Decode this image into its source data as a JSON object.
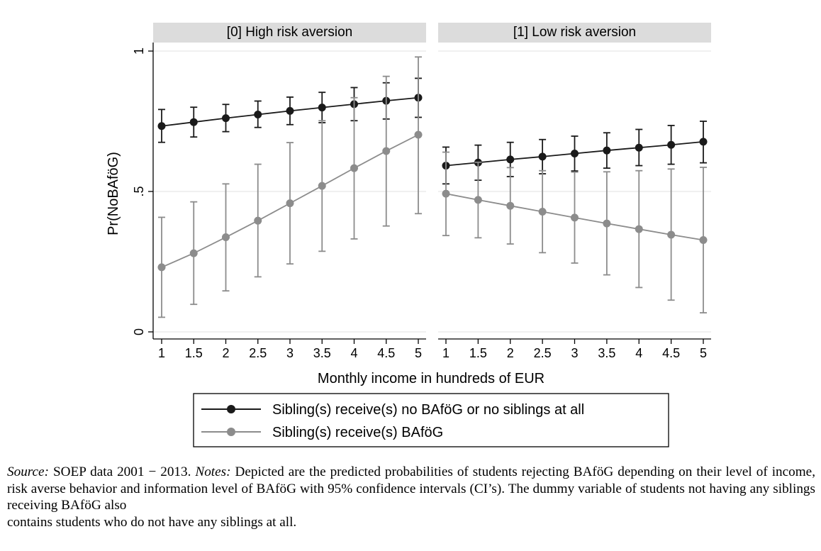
{
  "chart_data": {
    "type": "line",
    "facets": [
      {
        "label": "[0] High risk aversion"
      },
      {
        "label": "[1] Low risk aversion"
      }
    ],
    "x": [
      1,
      1.5,
      2,
      2.5,
      3,
      3.5,
      4,
      4.5,
      5
    ],
    "x_tick_labels": [
      "1",
      "1.5",
      "2",
      "2.5",
      "3",
      "3.5",
      "4",
      "4.5",
      "5"
    ],
    "xlabel": "Monthly income in hundreds of EUR",
    "ylabel": "Pr(NoBAföG)",
    "ylim": [
      0,
      1
    ],
    "y_ticks": [
      0,
      0.5,
      1
    ],
    "y_tick_labels": [
      "0",
      ".5",
      "1"
    ],
    "grid": true,
    "legend_position": "bottom",
    "series": [
      {
        "name": "Sibling(s) receive(s) no BAföG or no siblings at all",
        "color": "#1a1a1a",
        "panels": [
          {
            "y": [
              0.733,
              0.747,
              0.761,
              0.774,
              0.787,
              0.799,
              0.811,
              0.823,
              0.834
            ],
            "lower": [
              0.675,
              0.694,
              0.713,
              0.728,
              0.738,
              0.745,
              0.752,
              0.758,
              0.764
            ],
            "upper": [
              0.792,
              0.8,
              0.81,
              0.822,
              0.836,
              0.853,
              0.87,
              0.887,
              0.903
            ]
          },
          {
            "y": [
              0.592,
              0.603,
              0.614,
              0.624,
              0.635,
              0.646,
              0.656,
              0.666,
              0.677
            ],
            "lower": [
              0.527,
              0.54,
              0.553,
              0.563,
              0.573,
              0.583,
              0.592,
              0.597,
              0.602
            ],
            "upper": [
              0.658,
              0.665,
              0.675,
              0.685,
              0.697,
              0.709,
              0.721,
              0.735,
              0.75
            ]
          }
        ]
      },
      {
        "name": "Sibling(s) receive(s) BAföG",
        "color": "#8c8c8c",
        "panels": [
          {
            "y": [
              0.23,
              0.28,
              0.337,
              0.396,
              0.458,
              0.52,
              0.583,
              0.644,
              0.702
            ],
            "lower": [
              0.052,
              0.098,
              0.146,
              0.196,
              0.242,
              0.287,
              0.331,
              0.377,
              0.421
            ],
            "upper": [
              0.408,
              0.463,
              0.527,
              0.597,
              0.674,
              0.752,
              0.834,
              0.91,
              0.979
            ]
          },
          {
            "y": [
              0.492,
              0.47,
              0.449,
              0.428,
              0.407,
              0.386,
              0.366,
              0.346,
              0.327
            ],
            "lower": [
              0.343,
              0.335,
              0.313,
              0.282,
              0.245,
              0.203,
              0.158,
              0.113,
              0.068
            ],
            "upper": [
              0.64,
              0.604,
              0.585,
              0.574,
              0.569,
              0.57,
              0.574,
              0.58,
              0.586
            ]
          }
        ]
      }
    ]
  },
  "caption": {
    "source_label": "Source:",
    "source_text": "SOEP data 2001 − 2013.",
    "notes_label": "Notes:",
    "notes_text_1": "Depicted are the predicted probabilities of students rejecting BAföG depending on their level of income, risk averse behavior and information level of BAföG with 95% confidence intervals (CI’s). The dummy variable of students not having any siblings receiving BAföG also",
    "notes_text_2": "contains students who do not have any siblings at all."
  }
}
